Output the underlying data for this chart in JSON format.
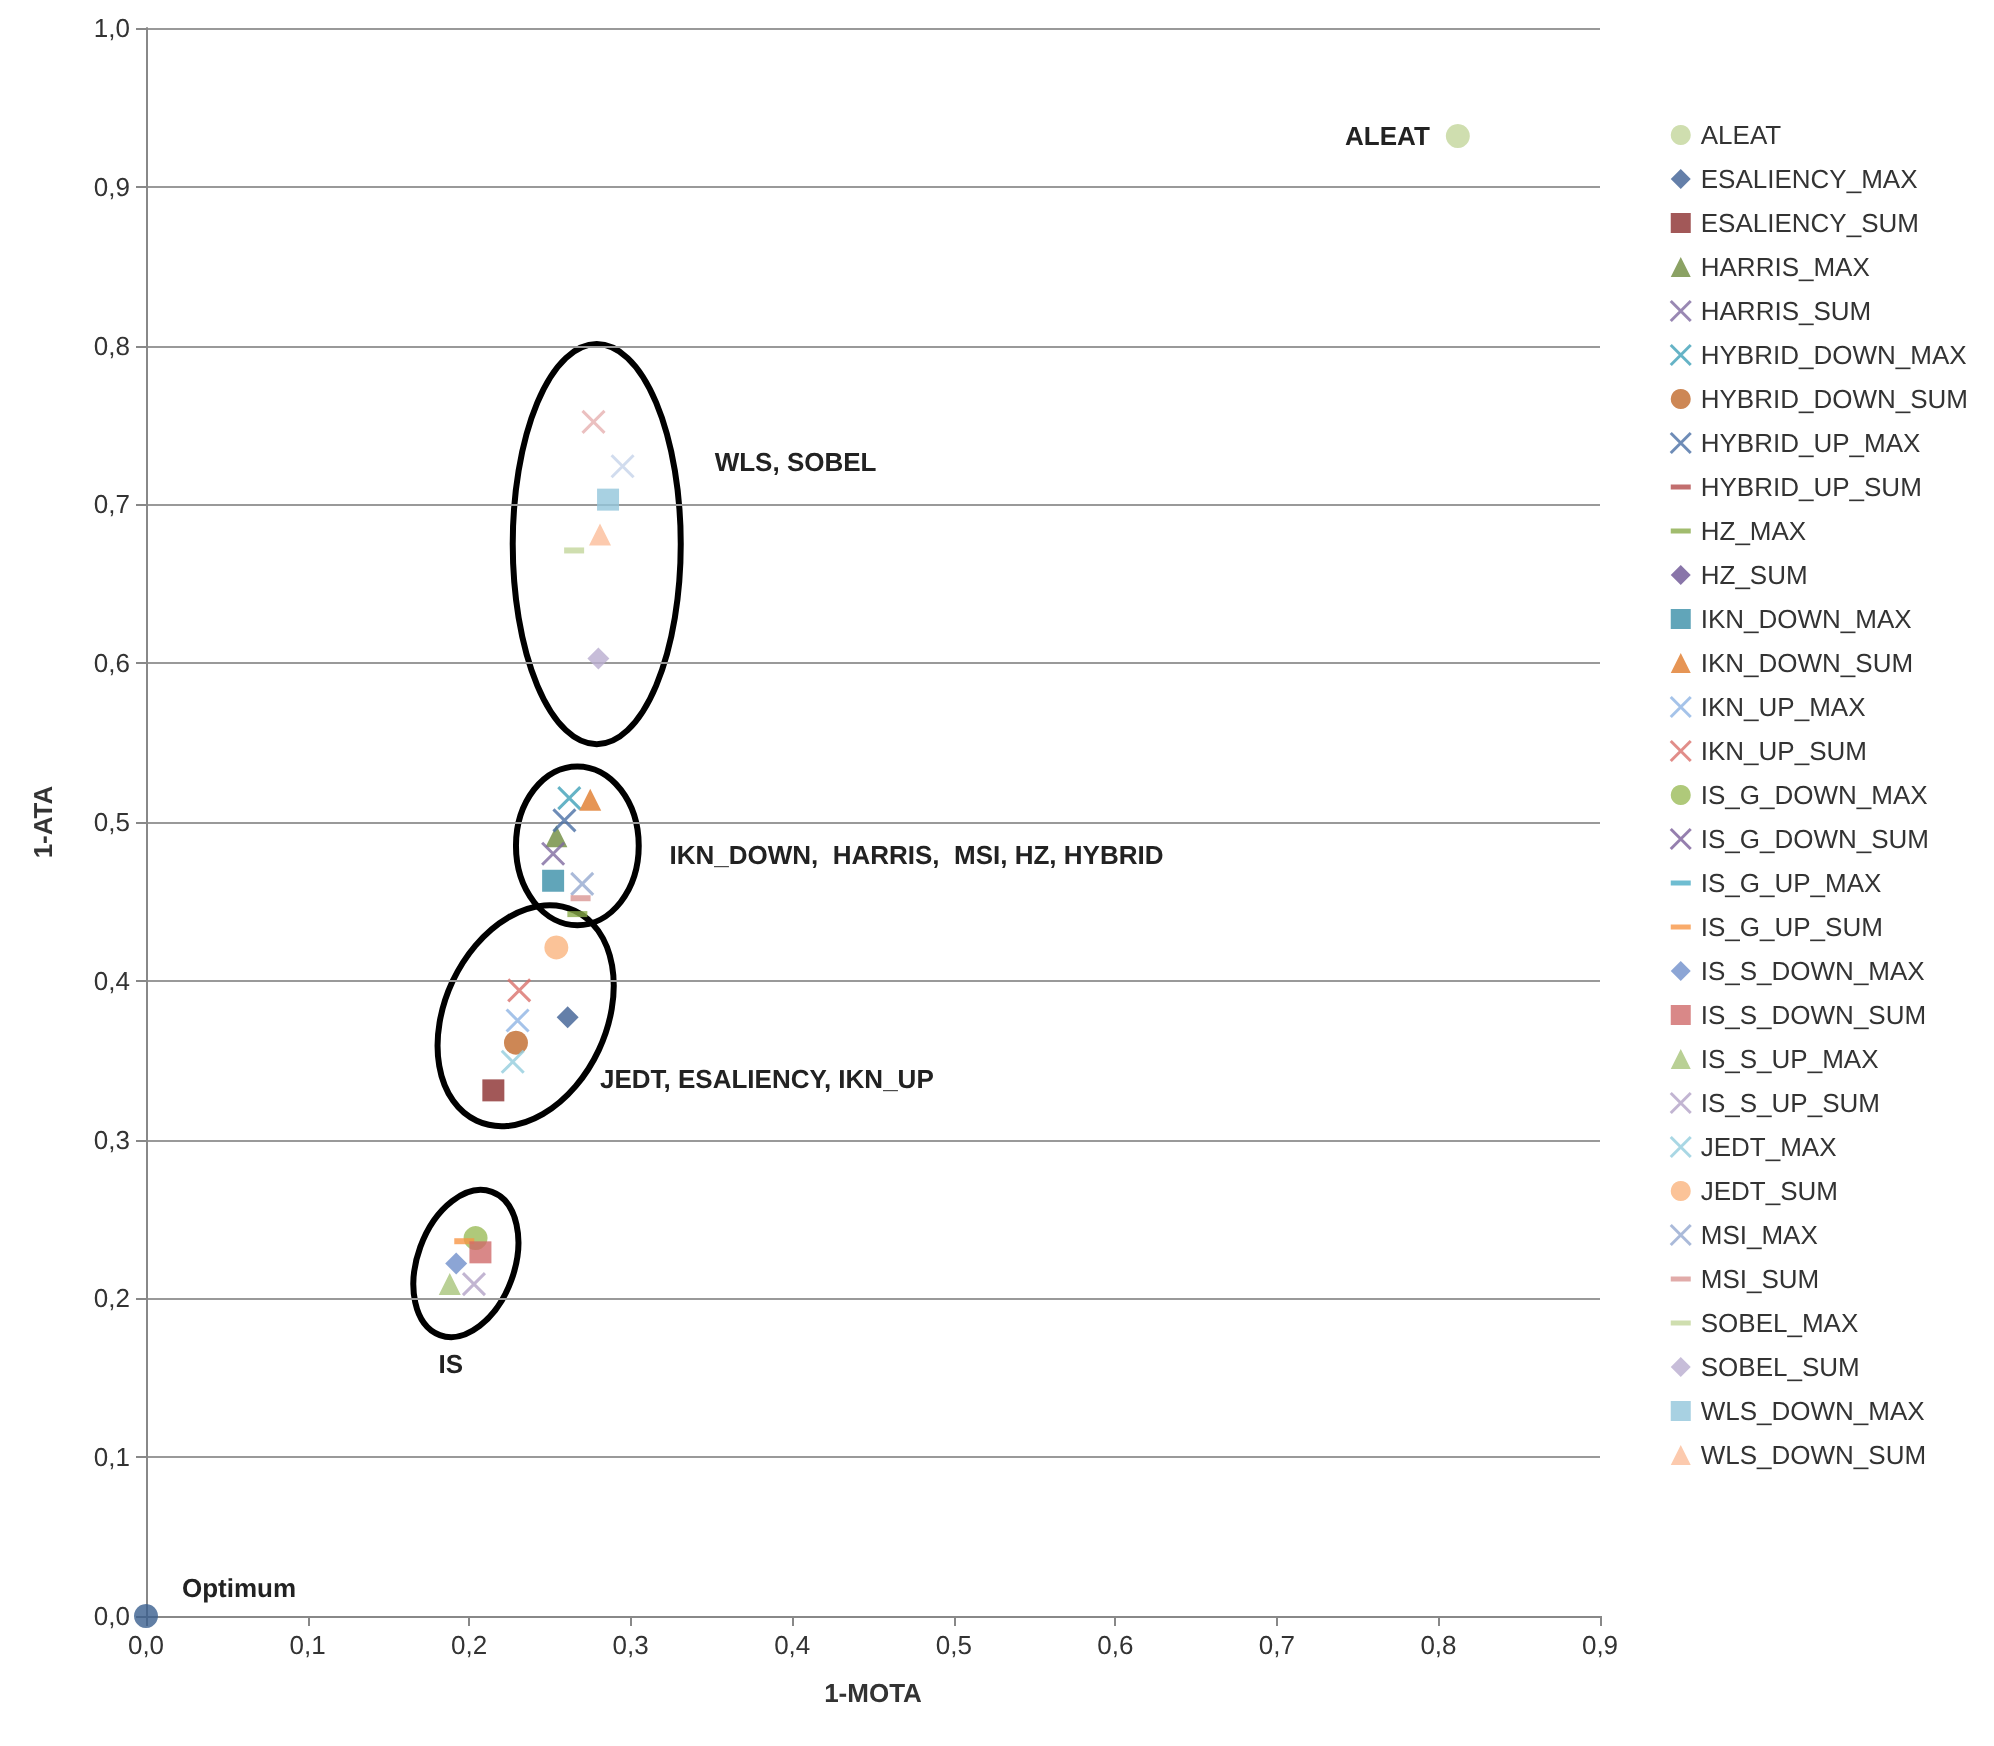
{
  "chart_data": {
    "type": "scatter",
    "xlabel": "1-MOTA",
    "ylabel": "1-ATA",
    "xlim": [
      0,
      0.9
    ],
    "ylim": [
      0,
      1.0
    ],
    "xticks": [
      {
        "value": 0,
        "label": "0,0"
      },
      {
        "value": 0.1,
        "label": "0,1"
      },
      {
        "value": 0.2,
        "label": "0,2"
      },
      {
        "value": 0.3,
        "label": "0,3"
      },
      {
        "value": 0.4,
        "label": "0,4"
      },
      {
        "value": 0.5,
        "label": "0,5"
      },
      {
        "value": 0.6,
        "label": "0,6"
      },
      {
        "value": 0.7,
        "label": "0,7"
      },
      {
        "value": 0.8,
        "label": "0,8"
      },
      {
        "value": 0.9,
        "label": "0,9"
      }
    ],
    "yticks": [
      {
        "value": 0,
        "label": "0,0"
      },
      {
        "value": 0.1,
        "label": "0,1"
      },
      {
        "value": 0.2,
        "label": "0,2"
      },
      {
        "value": 0.3,
        "label": "0,3"
      },
      {
        "value": 0.4,
        "label": "0,4"
      },
      {
        "value": 0.5,
        "label": "0,5"
      },
      {
        "value": 0.6,
        "label": "0,6"
      },
      {
        "value": 0.7,
        "label": "0,7"
      },
      {
        "value": 0.8,
        "label": "0,8"
      },
      {
        "value": 0.9,
        "label": "0,9"
      },
      {
        "value": 1.0,
        "label": "1,0"
      }
    ],
    "grid": "y",
    "legend": "right",
    "series": [
      {
        "name": "ALEAT",
        "color": "#c3d69b",
        "marker": "circle",
        "x": [
          0.812
        ],
        "values": [
          0.932
        ]
      },
      {
        "name": "ESALIENCY_MAX",
        "color": "#3d5f93",
        "marker": "diamond",
        "x": [
          0.261
        ],
        "values": [
          0.377
        ]
      },
      {
        "name": "ESALIENCY_SUM",
        "color": "#8b2e2e",
        "marker": "square",
        "x": [
          0.215
        ],
        "values": [
          0.331
        ]
      },
      {
        "name": "HARRIS_MAX",
        "color": "#6e8b3d",
        "marker": "triangle",
        "x": [
          0.254
        ],
        "values": [
          0.491
        ]
      },
      {
        "name": "HARRIS_SUM",
        "color": "#7f6aa0",
        "marker": "cross",
        "x": [
          0.252
        ],
        "values": [
          0.48
        ]
      },
      {
        "name": "HYBRID_DOWN_MAX",
        "color": "#3fa0b8",
        "marker": "cross",
        "x": [
          0.262
        ],
        "values": [
          0.515
        ]
      },
      {
        "name": "HYBRID_DOWN_SUM",
        "color": "#c0692a",
        "marker": "circle",
        "x": [
          0.229
        ],
        "values": [
          0.361
        ]
      },
      {
        "name": "HYBRID_UP_MAX",
        "color": "#4a6fa5",
        "marker": "cross",
        "x": [
          0.259
        ],
        "values": [
          0.501
        ]
      },
      {
        "name": "HYBRID_UP_SUM",
        "color": "#b34b4b",
        "x": [
          null
        ],
        "values": [
          null
        ]
      },
      {
        "name": "HZ_MAX",
        "color": "#8aab4a",
        "x": [
          0.267
        ],
        "values": [
          0.442
        ]
      },
      {
        "name": "HZ_SUM",
        "color": "#6b5294",
        "marker": "diamond",
        "x": [
          null
        ],
        "values": [
          null
        ]
      },
      {
        "name": "IKN_DOWN_MAX",
        "color": "#3a8fa8",
        "marker": "square",
        "x": [
          0.252
        ],
        "values": [
          0.463
        ]
      },
      {
        "name": "IKN_DOWN_SUM",
        "color": "#e07b2a",
        "marker": "triangle",
        "x": [
          0.275
        ],
        "values": [
          0.514
        ]
      },
      {
        "name": "IKN_UP_MAX",
        "color": "#8fb4e3",
        "marker": "cross",
        "x": [
          0.23
        ],
        "values": [
          0.375
        ]
      },
      {
        "name": "IKN_UP_SUM",
        "color": "#d9706c",
        "marker": "cross",
        "x": [
          0.231
        ],
        "values": [
          0.394
        ]
      },
      {
        "name": "IS_G_DOWN_MAX",
        "color": "#9bbb59",
        "marker": "circle",
        "x": [
          0.204
        ],
        "values": [
          0.238
        ]
      },
      {
        "name": "IS_G_DOWN_SUM",
        "color": "#7a5f9a",
        "marker": "cross",
        "x": [
          null
        ],
        "values": [
          null
        ]
      },
      {
        "name": "IS_G_UP_MAX",
        "color": "#4bacc6",
        "x": [
          null
        ],
        "values": [
          null
        ]
      },
      {
        "name": "IS_G_UP_SUM",
        "color": "#f79646",
        "x": [
          0.197
        ],
        "values": [
          0.236
        ]
      },
      {
        "name": "IS_S_DOWN_MAX",
        "color": "#6f8fca",
        "marker": "diamond",
        "x": [
          0.192
        ],
        "values": [
          0.222
        ]
      },
      {
        "name": "IS_S_DOWN_SUM",
        "color": "#d06a6a",
        "marker": "square",
        "x": [
          0.207
        ],
        "values": [
          0.229
        ]
      },
      {
        "name": "IS_S_UP_MAX",
        "color": "#a8c47a",
        "marker": "triangle",
        "x": [
          0.188
        ],
        "values": [
          0.209
        ]
      },
      {
        "name": "IS_S_UP_SUM",
        "color": "#b3a2c7",
        "marker": "cross",
        "x": [
          0.203
        ],
        "values": [
          0.209
        ]
      },
      {
        "name": "JEDT_MAX",
        "color": "#93cddd",
        "marker": "cross",
        "x": [
          0.227
        ],
        "values": [
          0.349
        ]
      },
      {
        "name": "JEDT_SUM",
        "color": "#fab47e",
        "marker": "circle",
        "x": [
          0.254
        ],
        "values": [
          0.421
        ]
      },
      {
        "name": "MSI_MAX",
        "color": "#95a9cf",
        "marker": "cross",
        "x": [
          0.27
        ],
        "values": [
          0.461
        ]
      },
      {
        "name": "MSI_SUM",
        "color": "#d99694",
        "x": [
          0.269
        ],
        "values": [
          0.452
        ]
      },
      {
        "name": "SOBEL_MAX",
        "color": "#c3d69b",
        "x": [
          0.265
        ],
        "values": [
          0.671
        ]
      },
      {
        "name": "SOBEL_SUM",
        "color": "#b9acd0",
        "marker": "diamond",
        "x": [
          0.28
        ],
        "values": [
          0.603
        ]
      },
      {
        "name": "WLS_DOWN_MAX",
        "color": "#92c5db",
        "marker": "square",
        "x": [
          0.286
        ],
        "values": [
          0.703
        ]
      },
      {
        "name": "WLS_DOWN_SUM",
        "color": "#fbbd9a",
        "marker": "triangle",
        "x": [
          0.281
        ],
        "values": [
          0.681
        ]
      },
      {
        "color": "#e6b0b0",
        "marker": "cross",
        "x": [
          0.277
        ],
        "values": [
          0.752
        ]
      },
      {
        "color": "#c5d3ea",
        "marker": "cross",
        "x": [
          0.295
        ],
        "values": [
          0.724
        ]
      },
      {
        "color": "#3a5f8f",
        "marker": "circle",
        "x": [
          0
        ],
        "values": [
          0
        ]
      }
    ],
    "annotations": [
      {
        "text": "ALEAT",
        "x": 0.812,
        "y": 0.932
      },
      "WLS, SOBEL",
      "IKN_DOWN,  HARRIS,  MSI, HZ, HYBRID",
      "JEDT, ESALIENCY, IKN_UP",
      "IS",
      {
        "text": "Optimum",
        "x": 0,
        "y": 0
      }
    ]
  }
}
